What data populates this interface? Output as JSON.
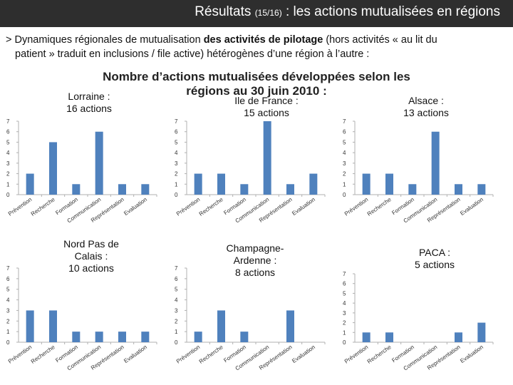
{
  "header": {
    "title_main": "Résultats",
    "title_small": "(15/16)",
    "title_rest": ": les actions mutualisées en régions"
  },
  "intro": {
    "prefix": "> Dynamiques régionales de mutualisation ",
    "bold": "des activités de pilotage",
    "line1_rest": " (hors activités « au lit du",
    "line2": "patient » traduit en inclusions / file active) hétérogènes d’une région à l’autre :"
  },
  "main_title": {
    "line1": "Nombre d’actions mutualisées développées selon les",
    "line2": "régions au 30 juin 2010 :"
  },
  "colors": {
    "bar": "#4f81bd",
    "header_bg": "#2e2e2e",
    "axis": "#b0b0b0",
    "tick_label": "#333333"
  },
  "chart_data": [
    {
      "type": "bar",
      "region": "Lorraine :",
      "total_label": "16 actions",
      "categories": [
        "Prévention",
        "Recherche",
        "Formation",
        "Communication",
        "Représentation",
        "Evaluation"
      ],
      "values": [
        2,
        5,
        1,
        6,
        1,
        1
      ],
      "ylim": [
        0,
        7
      ],
      "yticks": [
        "0",
        "1",
        "2",
        "3",
        "4",
        "5",
        "6",
        "7"
      ]
    },
    {
      "type": "bar",
      "region": "Ile de France :",
      "total_label": "15 actions",
      "categories": [
        "Prévention",
        "Recherche",
        "Formation",
        "Communication",
        "Représentation",
        "Evaluation"
      ],
      "values": [
        2,
        2,
        1,
        7,
        1,
        2
      ],
      "ylim": [
        0,
        7
      ],
      "yticks": [
        "0",
        "1",
        "2",
        "3",
        "4",
        "5",
        "6",
        "7"
      ]
    },
    {
      "type": "bar",
      "region": "Alsace :",
      "total_label": "13 actions",
      "categories": [
        "Prévention",
        "Recherche",
        "Formation",
        "Communication",
        "Représentation",
        "Evaluation"
      ],
      "values": [
        2,
        2,
        1,
        6,
        1,
        1
      ],
      "ylim": [
        0,
        7
      ],
      "yticks": [
        "0",
        "1",
        "2",
        "3",
        "4",
        "5",
        "6",
        "7"
      ]
    },
    {
      "type": "bar",
      "region": "Nord Pas de Calais :",
      "total_label": "10 actions",
      "categories": [
        "Prévention",
        "Recherche",
        "Formation",
        "Communication",
        "Représentation",
        "Evaluation"
      ],
      "values": [
        3,
        3,
        1,
        1,
        1,
        1
      ],
      "ylim": [
        0,
        7
      ],
      "yticks": [
        "0",
        "1",
        "2",
        "3",
        "4",
        "5",
        "6",
        "7"
      ]
    },
    {
      "type": "bar",
      "region": "Champagne-Ardenne :",
      "total_label": "8 actions",
      "categories": [
        "Prévention",
        "Recherche",
        "Formation",
        "Communication",
        "Représentation",
        "Evaluation"
      ],
      "values": [
        1,
        3,
        1,
        0,
        3,
        0
      ],
      "ylim": [
        0,
        7
      ],
      "yticks": [
        "0",
        "1",
        "2",
        "3",
        "4",
        "5",
        "6",
        "7"
      ]
    },
    {
      "type": "bar",
      "region": "PACA :",
      "total_label": "5 actions",
      "categories": [
        "Prévention",
        "Recherche",
        "Formation",
        "Communication",
        "Représentation",
        "Evaluation"
      ],
      "values": [
        1,
        1,
        0,
        0,
        1,
        2
      ],
      "ylim": [
        0,
        7
      ],
      "yticks": [
        "0",
        "1",
        "2",
        "3",
        "4",
        "5",
        "6",
        "7"
      ]
    }
  ]
}
